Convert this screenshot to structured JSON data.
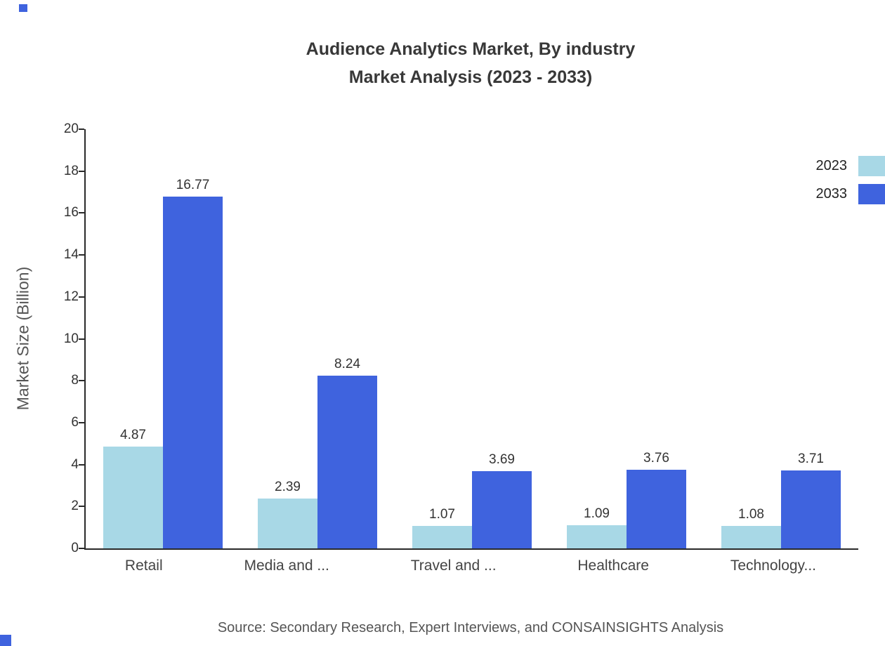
{
  "title": {
    "line1": "Audience Analytics Market, By industry",
    "line2": "Market Analysis (2023 - 2033)"
  },
  "chart_data": {
    "type": "bar",
    "categories": [
      "Retail",
      "Media and ...",
      "Travel and ...",
      "Healthcare",
      "Technology..."
    ],
    "series": [
      {
        "name": "2023",
        "color": "#a8d8e6",
        "values": [
          4.87,
          2.39,
          1.07,
          1.09,
          1.08
        ]
      },
      {
        "name": "2033",
        "color": "#3f63de",
        "values": [
          16.77,
          8.24,
          3.69,
          3.76,
          3.71
        ]
      }
    ],
    "title": "Audience Analytics Market, By industry Market Analysis (2023 - 2033)",
    "xlabel": "",
    "ylabel": "Market Size (Billion)",
    "ylim": [
      0,
      20
    ],
    "ytick_step": 2,
    "grid": false,
    "legend_position": "top-right",
    "value_labels": true
  },
  "source": "Source: Secondary Research, Expert Interviews, and CONSAINSIGHTS Analysis",
  "decor": {
    "watermark_color": "#3f63de"
  }
}
